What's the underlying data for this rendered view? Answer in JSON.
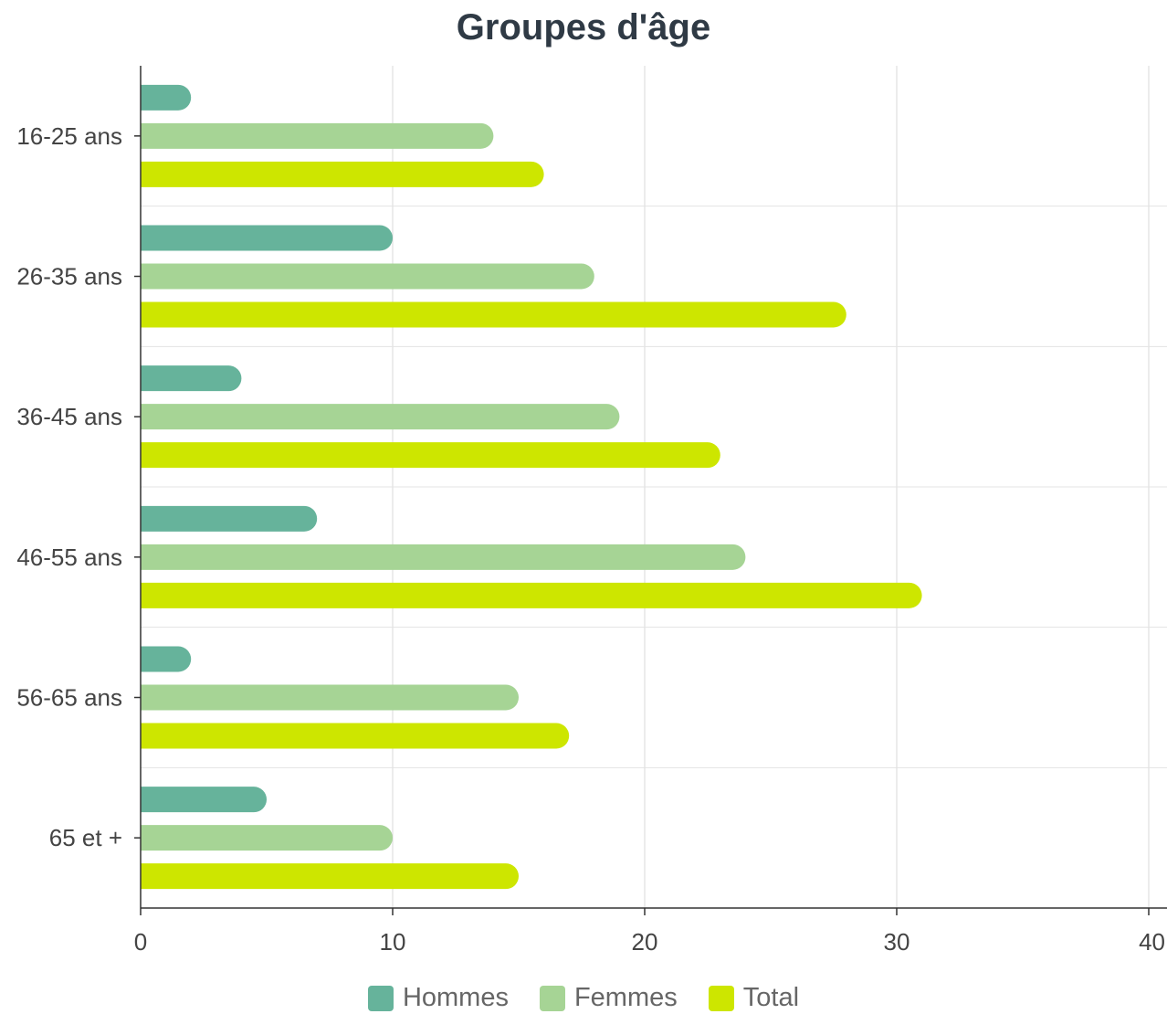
{
  "chart_data": {
    "type": "bar",
    "orientation": "horizontal",
    "title": "Groupes d'âge",
    "categories": [
      "16-25 ans",
      "26-35 ans",
      "36-45 ans",
      "46-55 ans",
      "56-65 ans",
      "65 et +"
    ],
    "series": [
      {
        "name": "Hommes",
        "color": "#66b39b",
        "values": [
          2,
          10,
          4,
          7,
          2,
          5
        ]
      },
      {
        "name": "Femmes",
        "color": "#a6d495",
        "values": [
          14,
          18,
          19,
          24,
          15,
          10
        ]
      },
      {
        "name": "Total",
        "color": "#cde600",
        "values": [
          16,
          28,
          23,
          31,
          17,
          15
        ]
      }
    ],
    "xlim": [
      0,
      40
    ],
    "xticks": [
      0,
      10,
      20,
      30,
      40
    ],
    "grid": true,
    "legend_position": "bottom"
  }
}
